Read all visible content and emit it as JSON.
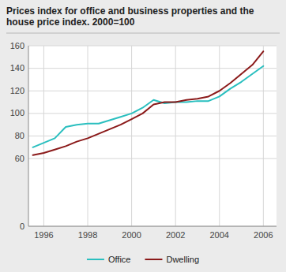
{
  "chart_data": {
    "type": "line",
    "title": "Prices index for office and business properties and the house price index. 2000=100",
    "series": [
      {
        "name": "Office",
        "color": "#2ABFBF",
        "x": [
          1995.5,
          1996.5,
          1997,
          1997.5,
          1998,
          1998.5,
          1999,
          1999.5,
          2000,
          2000.5,
          2001,
          2001.5,
          2002,
          2002.5,
          2003,
          2003.5,
          2004,
          2004.5,
          2005,
          2005.5,
          2006
        ],
        "values": [
          70,
          78,
          88,
          90,
          91,
          91,
          94,
          97,
          100,
          105,
          112,
          109,
          110,
          110,
          111,
          111,
          115,
          122,
          128,
          135,
          142
        ]
      },
      {
        "name": "Dwelling",
        "color": "#8B1A1A",
        "x": [
          1995.5,
          1996,
          1996.5,
          1997,
          1997.5,
          1998,
          1998.5,
          1999,
          1999.5,
          2000,
          2000.5,
          2001,
          2001.5,
          2002,
          2002.5,
          2003,
          2003.5,
          2004,
          2004.5,
          2005,
          2005.5,
          2006
        ],
        "values": [
          63,
          65,
          68,
          71,
          75,
          78,
          82,
          86,
          90,
          95,
          100,
          108,
          110,
          110,
          112,
          113,
          115,
          120,
          127,
          135,
          143,
          155
        ]
      }
    ],
    "xlim": [
      1995.3,
      2006.6
    ],
    "xticks": [
      1996,
      1998,
      2000,
      2002,
      2004,
      2006
    ],
    "ylim": [
      0,
      160
    ],
    "yticks": [
      0,
      60,
      80,
      100,
      120,
      140,
      160
    ],
    "grid": true,
    "legend": "bottom"
  }
}
